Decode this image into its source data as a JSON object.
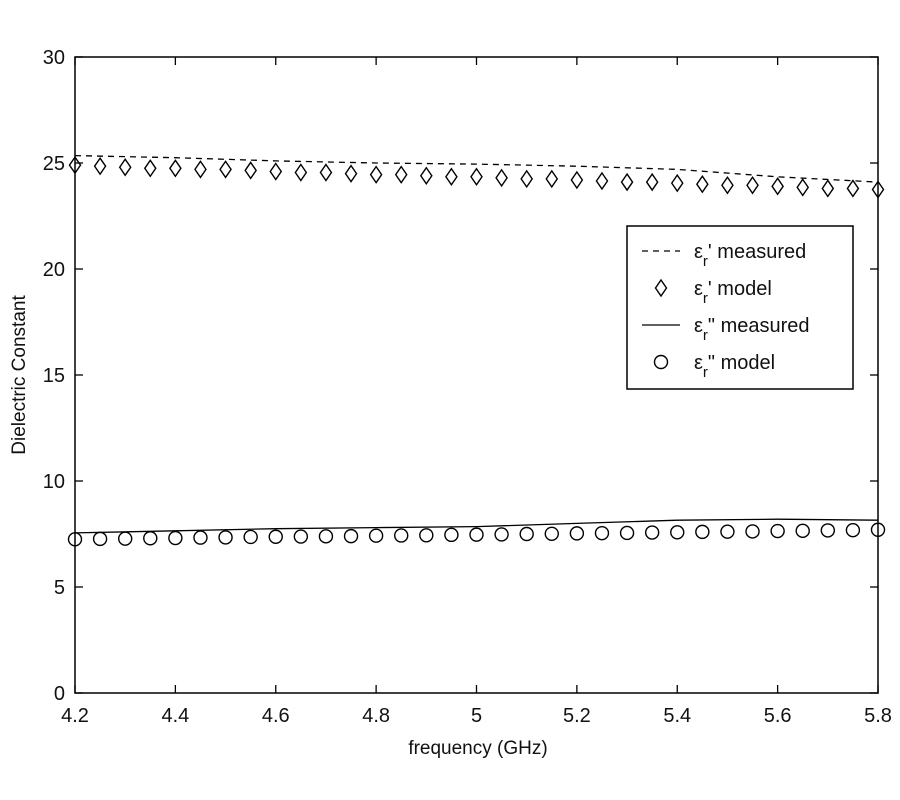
{
  "chart_data": {
    "type": "line",
    "title": "",
    "xlabel": "frequency (GHz)",
    "ylabel": "Dielectric Constant",
    "xlim": [
      4.2,
      5.8
    ],
    "ylim": [
      0,
      30
    ],
    "xticks": [
      "4.2",
      "4.4",
      "4.6",
      "4.8",
      "5",
      "5.2",
      "5.4",
      "5.6",
      "5.8"
    ],
    "yticks": [
      "0",
      "5",
      "10",
      "15",
      "20",
      "25",
      "30"
    ],
    "grid": false,
    "legend_position": "right",
    "series": [
      {
        "name": "εr' measured",
        "style": "dashed-line",
        "x": [
          4.2,
          4.4,
          4.6,
          4.8,
          5.0,
          5.2,
          5.4,
          5.6,
          5.8
        ],
        "y": [
          25.35,
          25.25,
          25.1,
          25.0,
          24.95,
          24.85,
          24.7,
          24.35,
          24.1
        ]
      },
      {
        "name": "εr' model",
        "style": "diamond-markers",
        "x": [
          4.2,
          4.25,
          4.3,
          4.35,
          4.4,
          4.45,
          4.5,
          4.55,
          4.6,
          4.65,
          4.7,
          4.75,
          4.8,
          4.85,
          4.9,
          4.95,
          5.0,
          5.05,
          5.1,
          5.15,
          5.2,
          5.25,
          5.3,
          5.35,
          5.4,
          5.45,
          5.5,
          5.55,
          5.6,
          5.65,
          5.7,
          5.75,
          5.8
        ],
        "y": [
          24.9,
          24.85,
          24.8,
          24.75,
          24.75,
          24.7,
          24.7,
          24.65,
          24.6,
          24.55,
          24.55,
          24.5,
          24.45,
          24.45,
          24.4,
          24.35,
          24.35,
          24.3,
          24.25,
          24.25,
          24.2,
          24.15,
          24.1,
          24.1,
          24.05,
          24.0,
          23.95,
          23.95,
          23.9,
          23.85,
          23.8,
          23.8,
          23.75
        ]
      },
      {
        "name": "εr\" measured",
        "style": "solid-line",
        "x": [
          4.2,
          4.4,
          4.6,
          4.8,
          5.0,
          5.2,
          5.4,
          5.6,
          5.8
        ],
        "y": [
          7.55,
          7.65,
          7.75,
          7.8,
          7.85,
          8.0,
          8.15,
          8.2,
          8.15
        ]
      },
      {
        "name": "εr\" model",
        "style": "circle-markers",
        "x": [
          4.2,
          4.25,
          4.3,
          4.35,
          4.4,
          4.45,
          4.5,
          4.55,
          4.6,
          4.65,
          4.7,
          4.75,
          4.8,
          4.85,
          4.9,
          4.95,
          5.0,
          5.05,
          5.1,
          5.15,
          5.2,
          5.25,
          5.3,
          5.35,
          5.4,
          5.45,
          5.5,
          5.55,
          5.6,
          5.65,
          5.7,
          5.75,
          5.8
        ],
        "y": [
          7.25,
          7.27,
          7.28,
          7.3,
          7.31,
          7.33,
          7.34,
          7.36,
          7.37,
          7.38,
          7.39,
          7.4,
          7.42,
          7.43,
          7.44,
          7.46,
          7.47,
          7.48,
          7.5,
          7.51,
          7.53,
          7.54,
          7.55,
          7.57,
          7.58,
          7.6,
          7.61,
          7.62,
          7.64,
          7.65,
          7.67,
          7.68,
          7.7
        ]
      }
    ],
    "legend": [
      {
        "symbol": "ε",
        "sub": "r",
        "suffix": "' measured"
      },
      {
        "symbol": "ε",
        "sub": "r",
        "suffix": "' model"
      },
      {
        "symbol": "ε",
        "sub": "r",
        "suffix": "\" measured"
      },
      {
        "symbol": "ε",
        "sub": "r",
        "suffix": "\" model"
      }
    ]
  }
}
